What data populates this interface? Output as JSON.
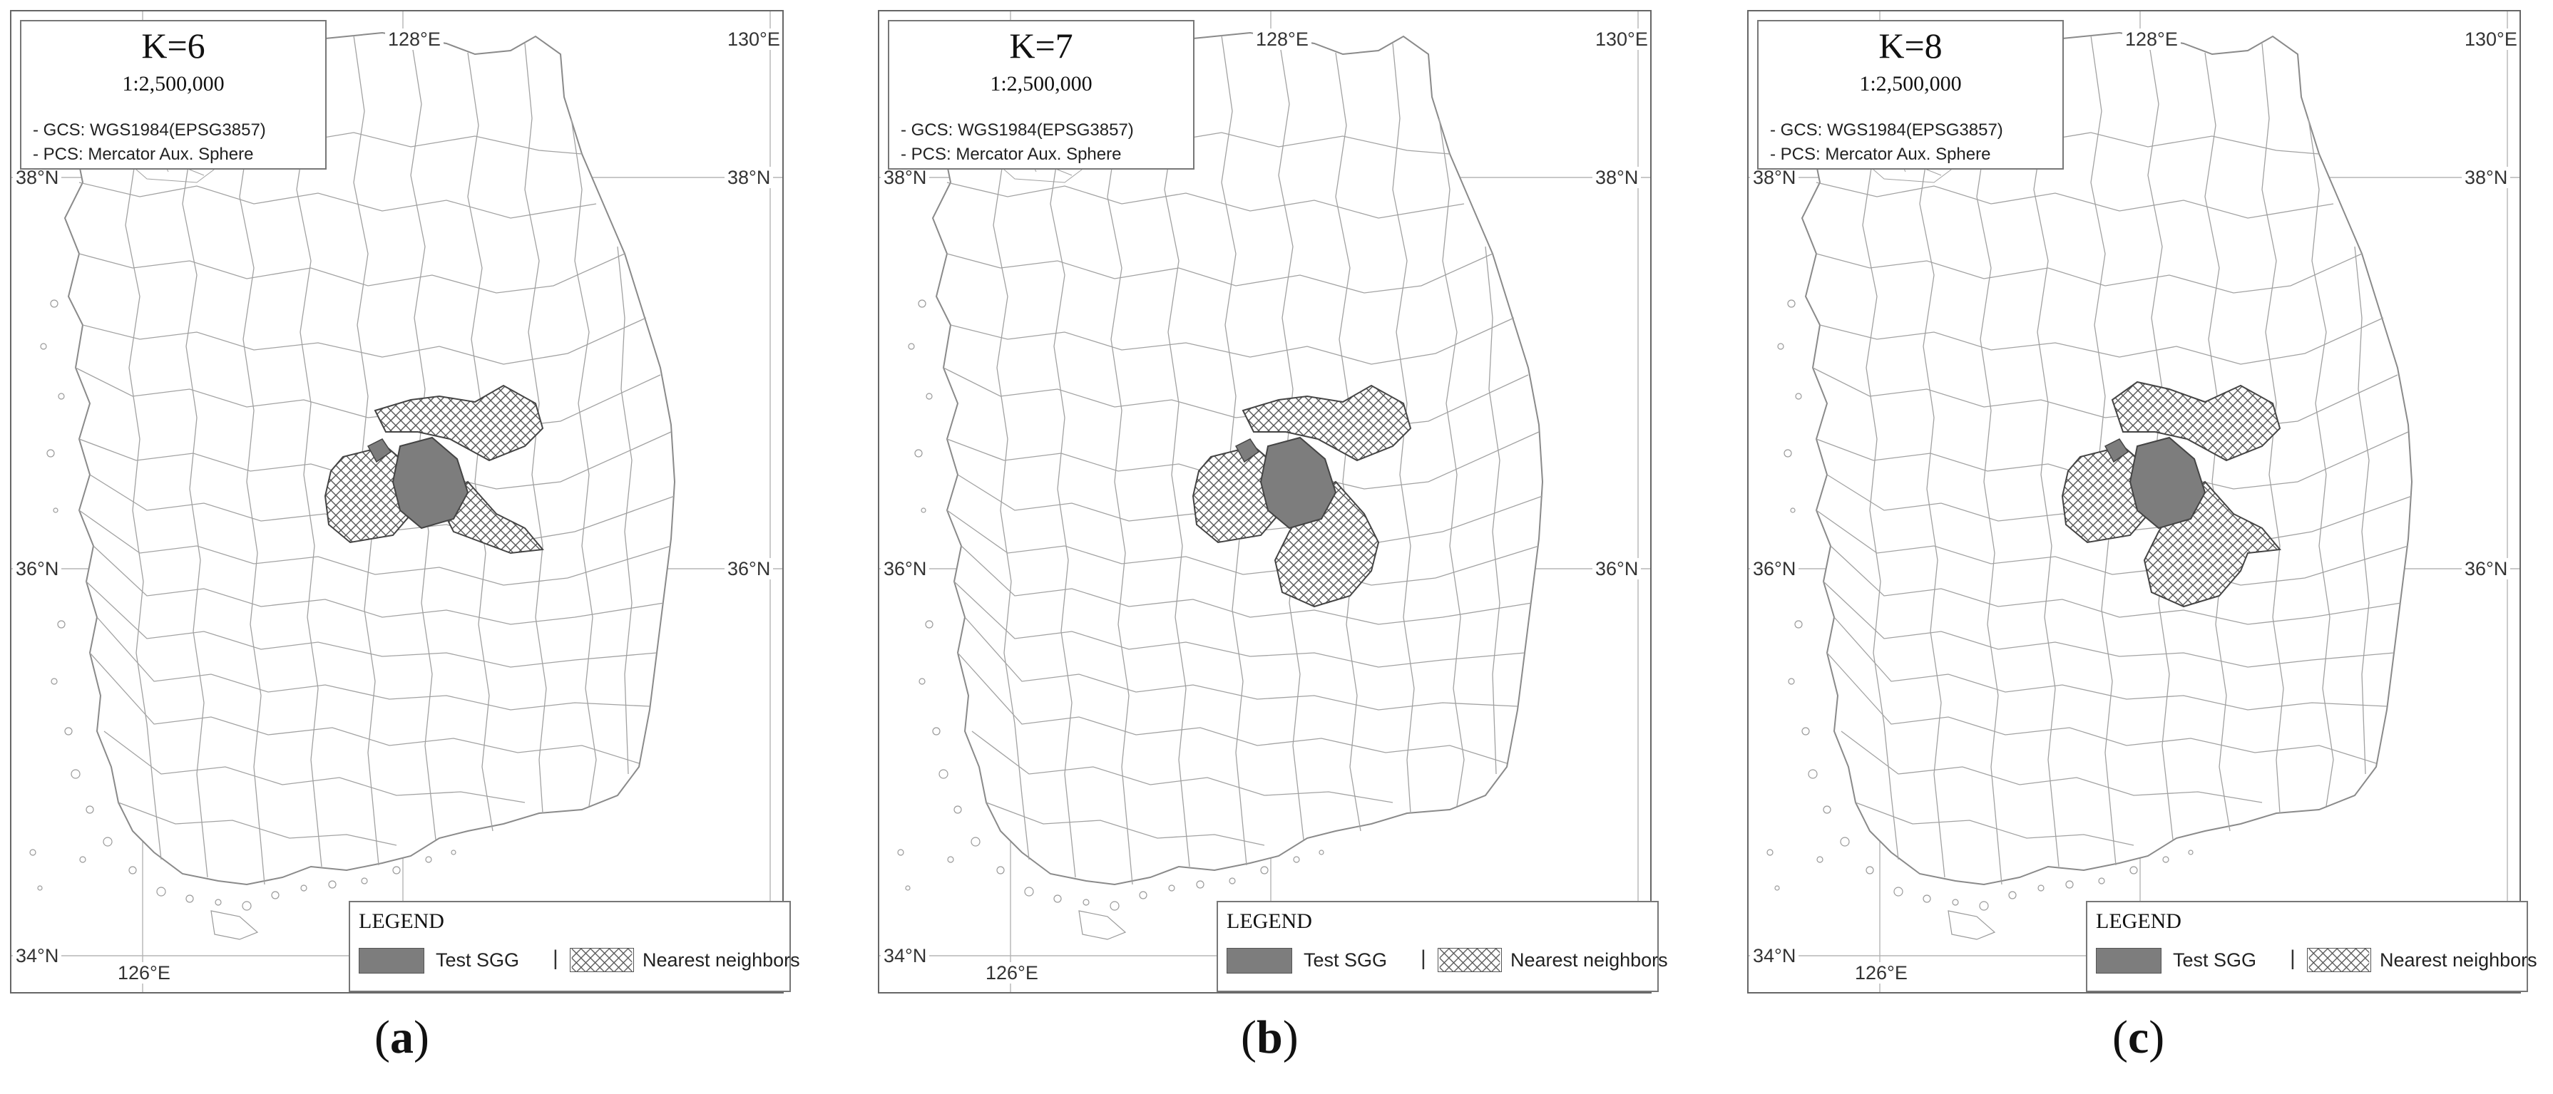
{
  "panels": [
    {
      "id": "a",
      "k_label": "K=6",
      "caption_letter": "a"
    },
    {
      "id": "b",
      "k_label": "K=7",
      "caption_letter": "b"
    },
    {
      "id": "c",
      "k_label": "K=8",
      "caption_letter": "c"
    }
  ],
  "map_info": {
    "scale": "1:2,500,000",
    "gcs": "- GCS: WGS1984(EPSG3857)",
    "pcs": "- PCS: Mercator Aux. Sphere"
  },
  "graticule": {
    "lon_top": [
      "128°E",
      "130°E"
    ],
    "lon_bottom": [
      "126°E"
    ],
    "lat": [
      "38°N",
      "36°N",
      "34°N"
    ]
  },
  "legend": {
    "title": "LEGEND",
    "test_label": "Test SGG",
    "separator": "|",
    "neighbor_label": "Nearest neighbors"
  },
  "colors": {
    "test_fill": "#7d7d7d",
    "boundary": "#9a9a9a",
    "hatch": "#555555",
    "grid": "#b5b5b5"
  }
}
